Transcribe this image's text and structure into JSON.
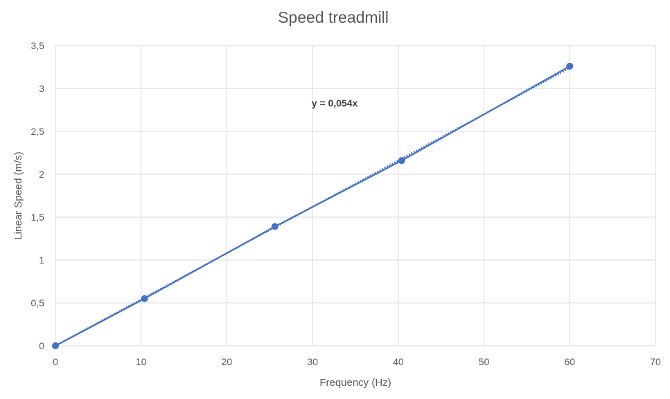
{
  "chart_data": {
    "type": "scatter",
    "title": "Speed treadmill",
    "xlabel": "Frequency (Hz)",
    "ylabel": "Linear Speed (m/s)",
    "xlim": [
      0,
      70
    ],
    "ylim": [
      0,
      3.5
    ],
    "x_ticks": [
      "0",
      "10",
      "20",
      "30",
      "40",
      "50",
      "60",
      "70"
    ],
    "y_ticks": [
      "0",
      "0,5",
      "1",
      "1,5",
      "2",
      "2,5",
      "3",
      "3,5"
    ],
    "grid": true,
    "series": [
      {
        "color": "#4472c4",
        "points": [
          {
            "x": 0,
            "y": 0
          },
          {
            "x": 10.4,
            "y": 0.55
          },
          {
            "x": 25.6,
            "y": 1.39
          },
          {
            "x": 40.4,
            "y": 2.16
          },
          {
            "x": 60,
            "y": 3.26
          }
        ]
      }
    ],
    "trendline": {
      "type": "linear",
      "slope": 0.054,
      "intercept": 0,
      "x_range": [
        0,
        60
      ],
      "label": "y = 0,054x",
      "color": "#4472c4",
      "style": "dotted"
    }
  }
}
